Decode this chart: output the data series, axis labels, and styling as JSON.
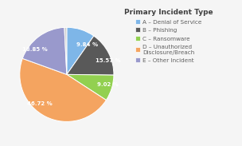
{
  "title": "Primary Incident Type",
  "slices": [
    {
      "label": "A – Denial of Service",
      "value": 9.84,
      "color": "#7eb6e8"
    },
    {
      "label": "B – Phishing",
      "value": 15.57,
      "color": "#595959"
    },
    {
      "label": "C – Ransomware",
      "value": 9.02,
      "color": "#92d050"
    },
    {
      "label": "D – Unauthorized\nDisclosure/Breach",
      "value": 46.72,
      "color": "#f4a460"
    },
    {
      "label": "E – Other Incident",
      "value": 18.85,
      "color": "#9999cc"
    }
  ],
  "extra_slice": {
    "value": 0.0,
    "color": "#cccccc"
  },
  "background_color": "#f5f5f5",
  "title_fontsize": 6.5,
  "legend_fontsize": 5.2,
  "label_fontsize": 5.0,
  "wedge_edge_color": "white"
}
